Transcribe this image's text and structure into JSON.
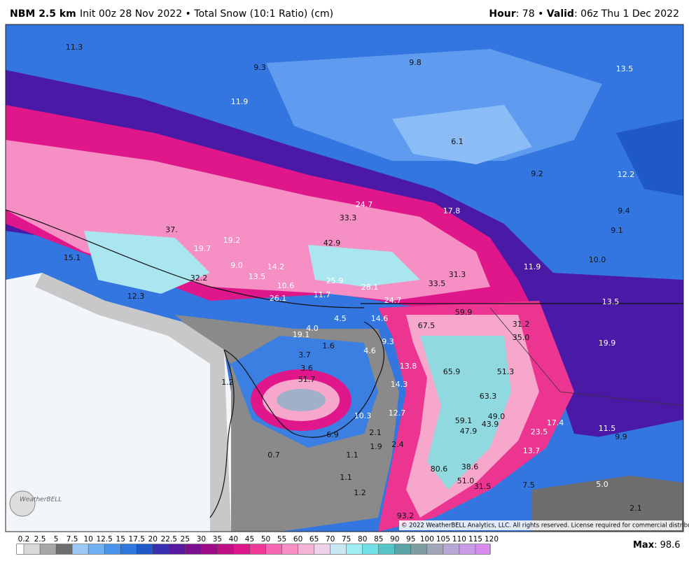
{
  "header": {
    "model": "NBM 2.5 km",
    "init": "Init 00z 28 Nov 2022 • Total Snow (10:1 Ratio) (cm)",
    "hour_label": "Hour",
    "hour": ": 78 •",
    "valid_label": "Valid",
    "valid": ": 06z Thu 1 Dec 2022"
  },
  "map": {
    "labels": [
      "11.3",
      "9.3",
      "9.8",
      "13.5",
      "11.9",
      "6.1",
      "9.2",
      "12.2",
      "24.7",
      "17.8",
      "33.3",
      "9.4",
      "37.",
      "9.1",
      "19.2",
      "42.9",
      "19.7",
      "15.1",
      "9.0",
      "14.2",
      "11.9",
      "10.0",
      "13.5",
      "31.3",
      "32.2",
      "25.9",
      "10.6",
      "33.5",
      "28.1",
      "12.3",
      "11.7",
      "26.1",
      "24.7",
      "13.5",
      "59.9",
      "4.5",
      "14.6",
      "4.0",
      "67.5",
      "31.2",
      "19.1",
      "35.0",
      "1.6",
      "9.3",
      "19.9",
      "4.6",
      "3.7",
      "13.8",
      "3.6",
      "65.9",
      "51.3",
      "51.7",
      "1.2",
      "14.3",
      "63.3",
      "10.3",
      "12.7",
      "49.0",
      "59.1",
      "17.4",
      "43.9",
      "47.9",
      "23.5",
      "11.5",
      "6.9",
      "2.1",
      "9.9",
      "1.9",
      "2.4",
      "13.7",
      "0.7",
      "1.1",
      "38.6",
      "80.6",
      "1.1",
      "51.0",
      "5.0",
      "31.5",
      "7.5",
      "1.2",
      "2.1",
      "93.2"
    ],
    "copyright": "© 2022 WeatherBELL Analytics, LLC. All rights reserved. License required for commercial distribution.",
    "logo": "WeatherBELL"
  },
  "colorbar": {
    "labels": [
      0.2,
      2.5,
      5,
      7.5,
      10,
      12.5,
      15,
      17.5,
      20,
      22.5,
      25,
      30,
      35,
      40,
      45,
      50,
      55,
      60,
      65,
      70,
      75,
      80,
      85,
      90,
      95,
      100,
      105,
      110,
      115,
      120
    ],
    "colors": [
      "#ffffff",
      "#d9d9d9",
      "#a6a6a6",
      "#6e6e6e",
      "#9cc8f5",
      "#6fb0f2",
      "#4a93ea",
      "#2f76dd",
      "#1f58c8",
      "#3a2fb0",
      "#5a1aa0",
      "#7a108f",
      "#9c0c86",
      "#c00f84",
      "#e0178a",
      "#f03a9a",
      "#f766b0",
      "#f88fc4",
      "#f5b3d6",
      "#eed2ea",
      "#c7e8f2",
      "#9feef2",
      "#70e0e6",
      "#56c3c9",
      "#5aa3a6",
      "#7f9da0",
      "#a0a6b8",
      "#b7a8d8",
      "#c99ae8",
      "#d98cf0"
    ]
  },
  "footer": {
    "max_label": "Max",
    "max": ": 98.6"
  }
}
